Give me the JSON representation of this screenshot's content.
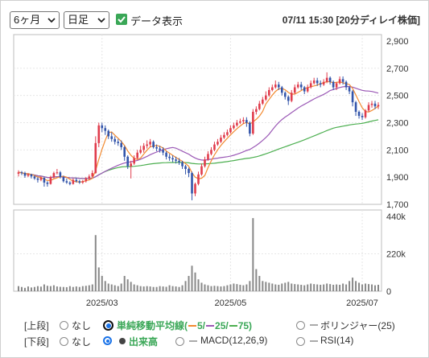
{
  "toolbar": {
    "period_select": "6ヶ月",
    "interval_select": "日足",
    "show_data_label": "データ表示",
    "timestamp": "07/11 15:30 [20分ディレイ株価]"
  },
  "controls": {
    "upper_label": "[上段]",
    "lower_label": "[下段]",
    "upper_none": "なし",
    "lower_none": "なし",
    "sma_label": "単純移動平均線(",
    "sma_5": "5/",
    "sma_25": "25/",
    "sma_75": "75)",
    "bollinger": "ボリンジャー(25)",
    "volume": "出来高",
    "macd": "MACD(12,26,9)",
    "rsi": "RSI(14)"
  },
  "colors": {
    "up": "#e03c4c",
    "down": "#3355aa",
    "ma5": "#f28a30",
    "ma25": "#9b59b6",
    "ma75": "#4caf50",
    "volume": "#888888"
  },
  "chart_data": {
    "type": "candlestick",
    "price_axis": {
      "min": 1700,
      "max": 2900,
      "ticks": [
        "2,900",
        "2,700",
        "2,500",
        "2,300",
        "2,100",
        "1,900",
        "1,700"
      ]
    },
    "volume_axis": {
      "min": 0,
      "max": 440000,
      "ticks": [
        "440k",
        "220k",
        "0"
      ]
    },
    "x_tick_labels": [
      {
        "label": "2025/03",
        "index": 26
      },
      {
        "label": "2025/05",
        "index": 66
      },
      {
        "label": "2025/07",
        "index": 107
      }
    ],
    "candles": [
      [
        1925,
        1935,
        1950,
        1905
      ],
      [
        1935,
        1930,
        1945,
        1915
      ],
      [
        1930,
        1910,
        1940,
        1895
      ],
      [
        1910,
        1920,
        1930,
        1900
      ],
      [
        1920,
        1905,
        1925,
        1890
      ],
      [
        1905,
        1890,
        1912,
        1880
      ],
      [
        1890,
        1880,
        1900,
        1860
      ],
      [
        1880,
        1895,
        1905,
        1870
      ],
      [
        1895,
        1860,
        1900,
        1830
      ],
      [
        1860,
        1850,
        1870,
        1830
      ],
      [
        1850,
        1900,
        1910,
        1845
      ],
      [
        1900,
        1930,
        1940,
        1890
      ],
      [
        1930,
        1935,
        1960,
        1920
      ],
      [
        1935,
        1900,
        1945,
        1890
      ],
      [
        1900,
        1870,
        1910,
        1860
      ],
      [
        1870,
        1860,
        1890,
        1850
      ],
      [
        1860,
        1850,
        1870,
        1840
      ],
      [
        1850,
        1880,
        1890,
        1845
      ],
      [
        1880,
        1870,
        1895,
        1860
      ],
      [
        1870,
        1860,
        1880,
        1850
      ],
      [
        1860,
        1870,
        1880,
        1850
      ],
      [
        1870,
        1890,
        1900,
        1860
      ],
      [
        1890,
        1905,
        1920,
        1880
      ],
      [
        1905,
        1930,
        1950,
        1900
      ],
      [
        1930,
        2150,
        2200,
        1925
      ],
      [
        2150,
        2280,
        2300,
        2120
      ],
      [
        2280,
        2260,
        2300,
        2230
      ],
      [
        2260,
        2240,
        2280,
        2210
      ],
      [
        2240,
        2200,
        2250,
        2180
      ],
      [
        2200,
        2180,
        2230,
        2160
      ],
      [
        2180,
        2160,
        2200,
        2140
      ],
      [
        2160,
        2150,
        2180,
        2130
      ],
      [
        2150,
        2120,
        2170,
        2100
      ],
      [
        2120,
        2050,
        2130,
        2020
      ],
      [
        2050,
        1980,
        2060,
        1960
      ],
      [
        1980,
        2000,
        2020,
        1890
      ],
      [
        2000,
        2040,
        2060,
        1990
      ],
      [
        2040,
        2080,
        2100,
        2030
      ],
      [
        2080,
        2100,
        2130,
        2070
      ],
      [
        2100,
        2130,
        2150,
        2080
      ],
      [
        2130,
        2140,
        2170,
        2110
      ],
      [
        2140,
        2160,
        2180,
        2120
      ],
      [
        2160,
        2120,
        2170,
        2110
      ],
      [
        2120,
        2110,
        2140,
        2090
      ],
      [
        2110,
        2100,
        2130,
        2080
      ],
      [
        2100,
        2080,
        2120,
        2060
      ],
      [
        2080,
        2050,
        2090,
        2030
      ],
      [
        2050,
        2040,
        2070,
        2020
      ],
      [
        2040,
        2030,
        2060,
        2010
      ],
      [
        2030,
        2020,
        2050,
        2000
      ],
      [
        2020,
        2010,
        2040,
        1990
      ],
      [
        2010,
        1980,
        2020,
        1960
      ],
      [
        1980,
        1960,
        1990,
        1920
      ],
      [
        1960,
        1930,
        1970,
        1900
      ],
      [
        1930,
        1780,
        1940,
        1730
      ],
      [
        1780,
        1850,
        1860,
        1760
      ],
      [
        1850,
        1920,
        1940,
        1840
      ],
      [
        1920,
        1980,
        2000,
        1910
      ],
      [
        1980,
        2030,
        2050,
        1970
      ],
      [
        2030,
        2070,
        2090,
        2020
      ],
      [
        2070,
        2100,
        2120,
        2060
      ],
      [
        2100,
        2140,
        2160,
        2090
      ],
      [
        2140,
        2160,
        2180,
        2130
      ],
      [
        2160,
        2190,
        2210,
        2150
      ],
      [
        2190,
        2210,
        2230,
        2180
      ],
      [
        2210,
        2230,
        2250,
        2200
      ],
      [
        2230,
        2260,
        2280,
        2220
      ],
      [
        2260,
        2280,
        2300,
        2250
      ],
      [
        2280,
        2300,
        2320,
        2270
      ],
      [
        2300,
        2310,
        2330,
        2290
      ],
      [
        2310,
        2320,
        2340,
        2290
      ],
      [
        2320,
        2300,
        2340,
        2270
      ],
      [
        2300,
        2220,
        2310,
        2200
      ],
      [
        2220,
        2380,
        2400,
        2210
      ],
      [
        2380,
        2400,
        2420,
        2360
      ],
      [
        2400,
        2440,
        2460,
        2390
      ],
      [
        2440,
        2470,
        2490,
        2430
      ],
      [
        2470,
        2500,
        2530,
        2460
      ],
      [
        2500,
        2540,
        2560,
        2490
      ],
      [
        2540,
        2560,
        2580,
        2530
      ],
      [
        2560,
        2580,
        2610,
        2550
      ],
      [
        2580,
        2560,
        2600,
        2540
      ],
      [
        2560,
        2520,
        2570,
        2500
      ],
      [
        2520,
        2490,
        2530,
        2470
      ],
      [
        2490,
        2460,
        2500,
        2430
      ],
      [
        2460,
        2520,
        2540,
        2450
      ],
      [
        2520,
        2560,
        2580,
        2510
      ],
      [
        2560,
        2580,
        2600,
        2550
      ],
      [
        2580,
        2560,
        2600,
        2540
      ],
      [
        2560,
        2530,
        2570,
        2510
      ],
      [
        2530,
        2560,
        2580,
        2520
      ],
      [
        2560,
        2590,
        2610,
        2550
      ],
      [
        2590,
        2610,
        2630,
        2580
      ],
      [
        2610,
        2590,
        2630,
        2570
      ],
      [
        2590,
        2580,
        2610,
        2560
      ],
      [
        2580,
        2600,
        2620,
        2570
      ],
      [
        2600,
        2630,
        2670,
        2590
      ],
      [
        2630,
        2600,
        2640,
        2580
      ],
      [
        2600,
        2560,
        2610,
        2540
      ],
      [
        2560,
        2590,
        2600,
        2540
      ],
      [
        2590,
        2620,
        2640,
        2580
      ],
      [
        2620,
        2600,
        2640,
        2580
      ],
      [
        2600,
        2560,
        2610,
        2540
      ],
      [
        2560,
        2530,
        2570,
        2510
      ],
      [
        2530,
        2450,
        2540,
        2420
      ],
      [
        2450,
        2380,
        2460,
        2350
      ],
      [
        2380,
        2350,
        2390,
        2330
      ],
      [
        2350,
        2340,
        2370,
        2320
      ],
      [
        2340,
        2390,
        2400,
        2330
      ],
      [
        2390,
        2430,
        2450,
        2380
      ],
      [
        2430,
        2440,
        2460,
        2410
      ],
      [
        2440,
        2420,
        2460,
        2400
      ],
      [
        2420,
        2430,
        2450,
        2400
      ]
    ],
    "volumes": [
      30000,
      25000,
      20000,
      28000,
      22000,
      25000,
      30000,
      27000,
      40000,
      32000,
      30000,
      35000,
      28000,
      26000,
      25000,
      24000,
      30000,
      25000,
      28000,
      25000,
      30000,
      32000,
      35000,
      40000,
      330000,
      140000,
      90000,
      60000,
      45000,
      40000,
      35000,
      30000,
      45000,
      90000,
      70000,
      55000,
      40000,
      35000,
      30000,
      28000,
      30000,
      28000,
      25000,
      25000,
      30000,
      28000,
      26000,
      35000,
      30000,
      28000,
      25000,
      35000,
      60000,
      90000,
      150000,
      110000,
      70000,
      50000,
      40000,
      35000,
      30000,
      32000,
      30000,
      28000,
      30000,
      35000,
      40000,
      45000,
      42000,
      38000,
      35000,
      40000,
      60000,
      430000,
      130000,
      90000,
      60000,
      55000,
      50000,
      45000,
      40000,
      38000,
      45000,
      50000,
      55000,
      45000,
      42000,
      40000,
      38000,
      35000,
      40000,
      45000,
      42000,
      40000,
      38000,
      40000,
      45000,
      42000,
      38000,
      40000,
      38000,
      45000,
      40000,
      60000,
      80000,
      60000,
      50000,
      40000,
      45000,
      42000,
      40000,
      35000,
      38000
    ]
  }
}
